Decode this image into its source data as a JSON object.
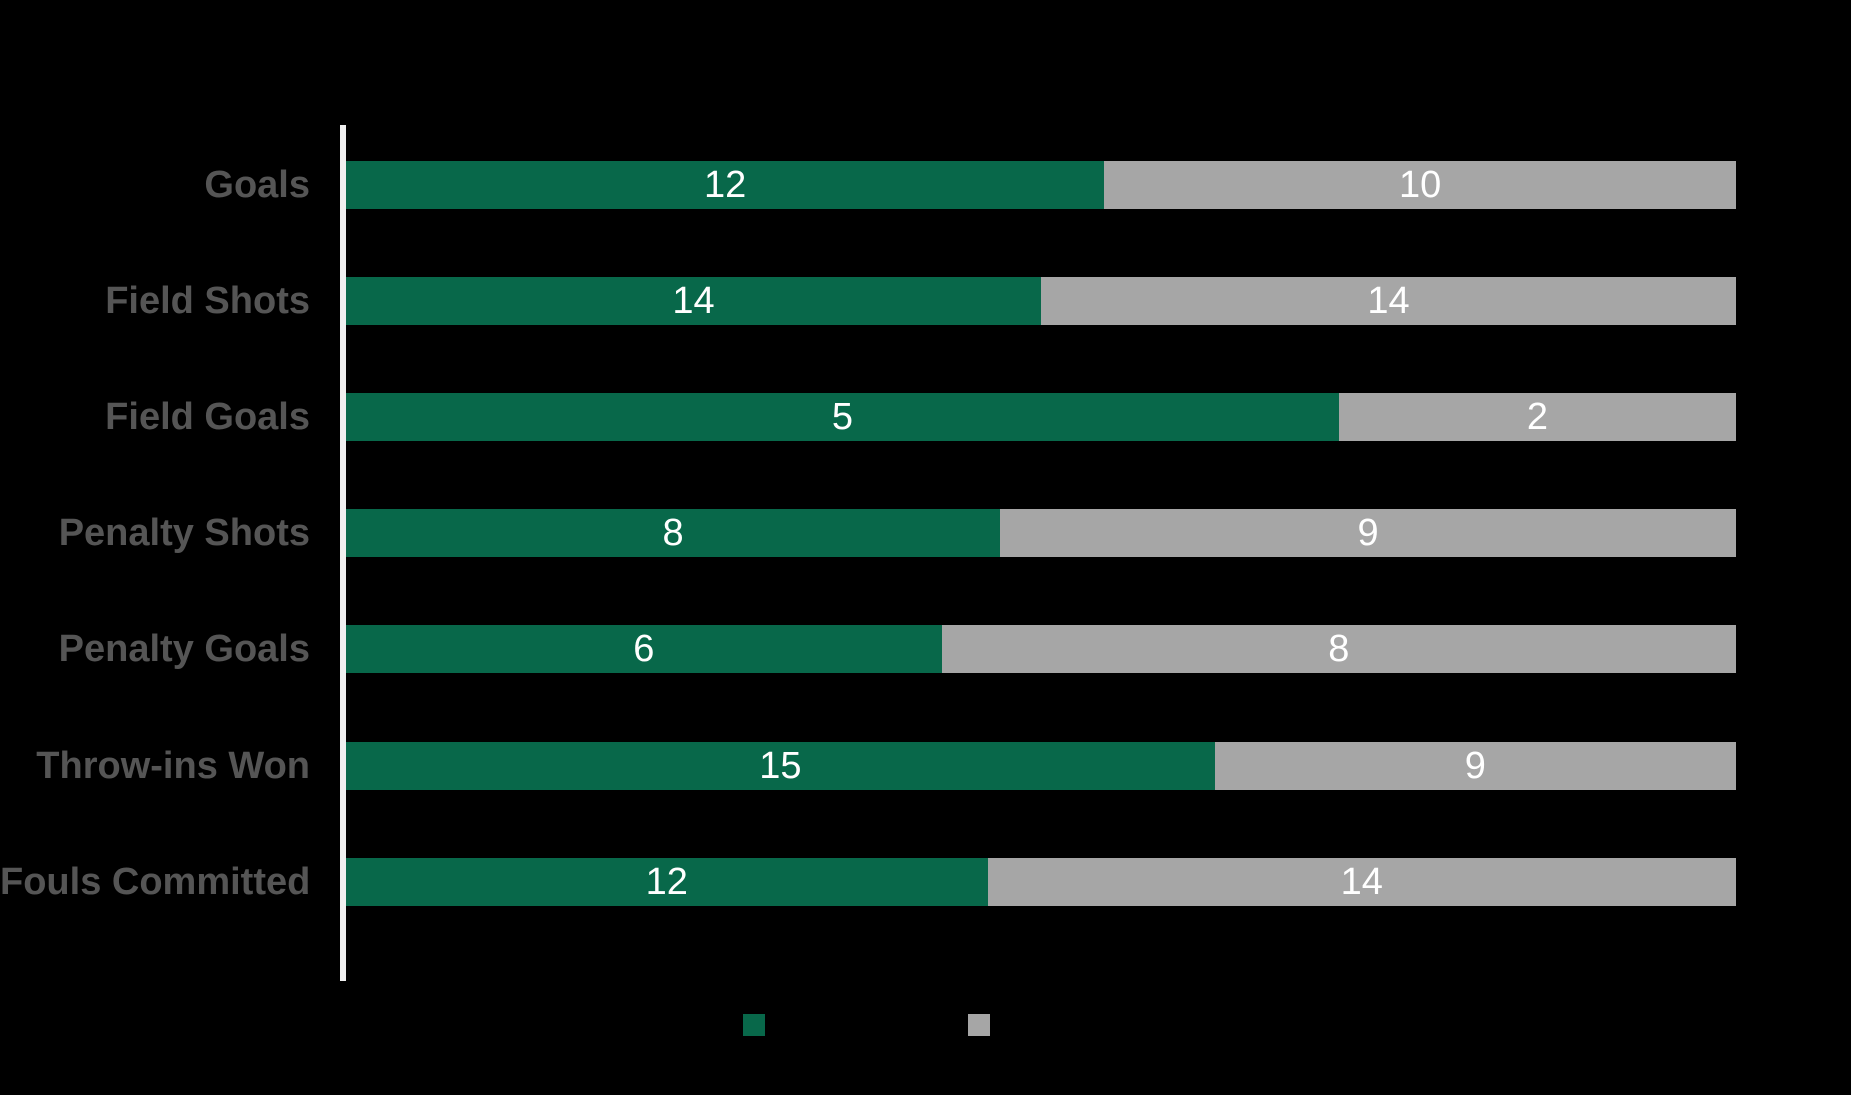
{
  "chart_data": {
    "type": "bar",
    "orientation": "horizontal",
    "stacked": true,
    "full_width_normalized": true,
    "title": "",
    "xlabel": "",
    "ylabel": "",
    "categories": [
      "Goals",
      "Field Shots",
      "Field Goals",
      "Penalty Shots",
      "Penalty Goals",
      "Throw-ins Won",
      "Fouls Committed"
    ],
    "series": [
      {
        "label": "",
        "color": "#08684a",
        "values": [
          12,
          14,
          5,
          8,
          6,
          15,
          12
        ]
      },
      {
        "label": "",
        "color": "#a6a6a6",
        "values": [
          10,
          14,
          2,
          9,
          8,
          9,
          14
        ]
      }
    ],
    "value_labels_inside_segments": true,
    "legend_position": "bottom-center",
    "legend_text_visible": false,
    "grid": false,
    "tick_labels_visible": false
  },
  "colors": {
    "background": "#000000",
    "axis_baseline": "#f0f0f0",
    "category_label": "#555555",
    "value_label": "#ffffff",
    "series_green": "#08684a",
    "series_gray": "#a6a6a6"
  }
}
